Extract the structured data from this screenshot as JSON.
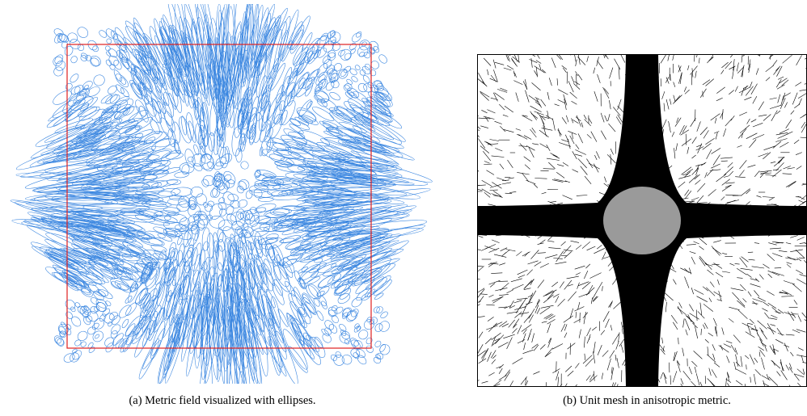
{
  "figure": {
    "left_panel": {
      "label": "(a)",
      "caption": "Metric field visualized with ellipses.",
      "colors": {
        "ellipse_stroke": "#3a86e0",
        "domain_frame": "#e02020"
      }
    },
    "right_panel": {
      "label": "(b)",
      "caption": "Unit mesh in anisotropic metric.",
      "colors": {
        "mesh_edges": "#000000",
        "background": "#ffffff"
      }
    }
  }
}
